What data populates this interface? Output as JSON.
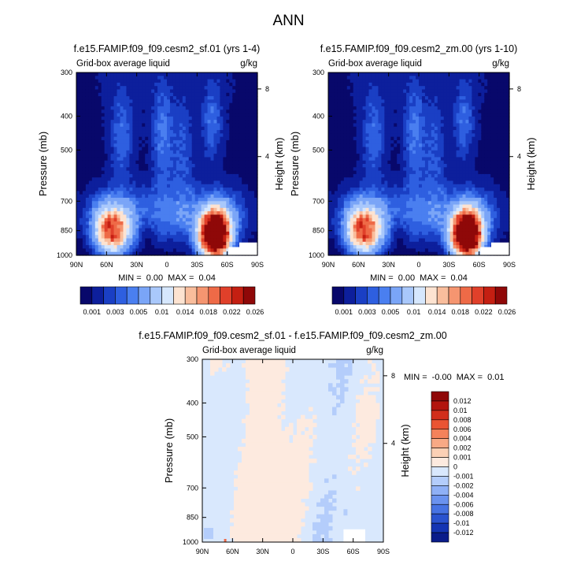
{
  "page_title": "ANN",
  "chart_data": [
    {
      "type": "heatmap",
      "title": "f.e15.FAMIP.f09_f09.cesm2_sf.01 (yrs 1-4)",
      "variable": "Grid-box average liquid",
      "units": "g/kg",
      "ylabel": "Pressure (mb)",
      "y2label": "Height (km)",
      "x_ticks": [
        "90N",
        "60N",
        "30N",
        "0",
        "30S",
        "60S",
        "90S"
      ],
      "y_ticks": [
        "300",
        "400",
        "500",
        "700",
        "850",
        "1000"
      ],
      "y2_ticks": [
        "8",
        "4"
      ],
      "xlim": [
        90,
        -90
      ],
      "ylim": [
        1000,
        300
      ],
      "y_scale": "log",
      "min_label": "MIN =",
      "min_value": "0.00",
      "max_label": "MAX =",
      "max_value": "0.04",
      "colorbar_labels": [
        "0.001",
        "0.003",
        "0.005",
        "0.01",
        "0.014",
        "0.018",
        "0.022",
        "0.026"
      ],
      "colorbar_levels": [
        0.001,
        0.002,
        0.003,
        0.004,
        0.005,
        0.0075,
        0.01,
        0.012,
        0.014,
        0.016,
        0.018,
        0.02,
        0.022,
        0.024,
        0.026
      ],
      "features": [
        {
          "lat": 55,
          "pressure": 850,
          "max": 0.02
        },
        {
          "lat": -48,
          "pressure": 870,
          "max": 0.04
        }
      ]
    },
    {
      "type": "heatmap",
      "title": "f.e15.FAMIP.f09_f09.cesm2_zm.00 (yrs 1-10)",
      "variable": "Grid-box average liquid",
      "units": "g/kg",
      "ylabel": "Pressure (mb)",
      "y2label": "Height (km)",
      "x_ticks": [
        "90N",
        "60N",
        "30N",
        "0",
        "30S",
        "60S",
        "90S"
      ],
      "y_ticks": [
        "300",
        "400",
        "500",
        "700",
        "850",
        "1000"
      ],
      "y2_ticks": [
        "8",
        "4"
      ],
      "xlim": [
        90,
        -90
      ],
      "ylim": [
        1000,
        300
      ],
      "y_scale": "log",
      "min_label": "MIN =",
      "min_value": "0.00",
      "max_label": "MAX =",
      "max_value": "0.04",
      "colorbar_labels": [
        "0.001",
        "0.003",
        "0.005",
        "0.01",
        "0.014",
        "0.018",
        "0.022",
        "0.026"
      ],
      "colorbar_levels": [
        0.001,
        0.002,
        0.003,
        0.004,
        0.005,
        0.0075,
        0.01,
        0.012,
        0.014,
        0.016,
        0.018,
        0.02,
        0.022,
        0.024,
        0.026
      ],
      "features": [
        {
          "lat": 55,
          "pressure": 850,
          "max": 0.02
        },
        {
          "lat": -48,
          "pressure": 870,
          "max": 0.04
        }
      ]
    },
    {
      "type": "heatmap",
      "title": "f.e15.FAMIP.f09_f09.cesm2_sf.01 - f.e15.FAMIP.f09_f09.cesm2_zm.00",
      "variable": "Grid-box average liquid",
      "units": "g/kg",
      "ylabel": "Pressure (mb)",
      "y2label": "Height (km)",
      "x_ticks": [
        "90N",
        "60N",
        "30N",
        "0",
        "30S",
        "60S",
        "90S"
      ],
      "y_ticks": [
        "300",
        "400",
        "500",
        "700",
        "850",
        "1000"
      ],
      "y2_ticks": [
        "8",
        "4"
      ],
      "xlim": [
        90,
        -90
      ],
      "ylim": [
        1000,
        300
      ],
      "y_scale": "log",
      "min_label": "MIN =",
      "min_value": "-0.00",
      "max_label": "MAX =",
      "max_value": "0.01",
      "colorbar_labels": [
        "0.012",
        "0.01",
        "0.008",
        "0.006",
        "0.004",
        "0.002",
        "0.001",
        "0",
        "-0.001",
        "-0.002",
        "-0.004",
        "-0.006",
        "-0.008",
        "-0.01",
        "-0.012"
      ]
    }
  ],
  "colors": {
    "abs_scale": [
      "#08086b",
      "#0d1f9c",
      "#1a3fc4",
      "#2e5fe0",
      "#4a7ff0",
      "#7aa5f7",
      "#a9c8fb",
      "#d6e7fd",
      "#fde3d1",
      "#f9bd9c",
      "#f59570",
      "#ee6a47",
      "#e0402a",
      "#c41f12",
      "#8f0808"
    ],
    "diff_scale": [
      "#8f0808",
      "#b2150e",
      "#d12e1b",
      "#ea5433",
      "#f4825b",
      "#f8a985",
      "#fbd0b5",
      "#fdeadf",
      "#d9e8fd",
      "#b4cdfb",
      "#8fb0f6",
      "#6a92ef",
      "#4773e3",
      "#2a53cf",
      "#1435b3",
      "#0a1c8a"
    ]
  }
}
